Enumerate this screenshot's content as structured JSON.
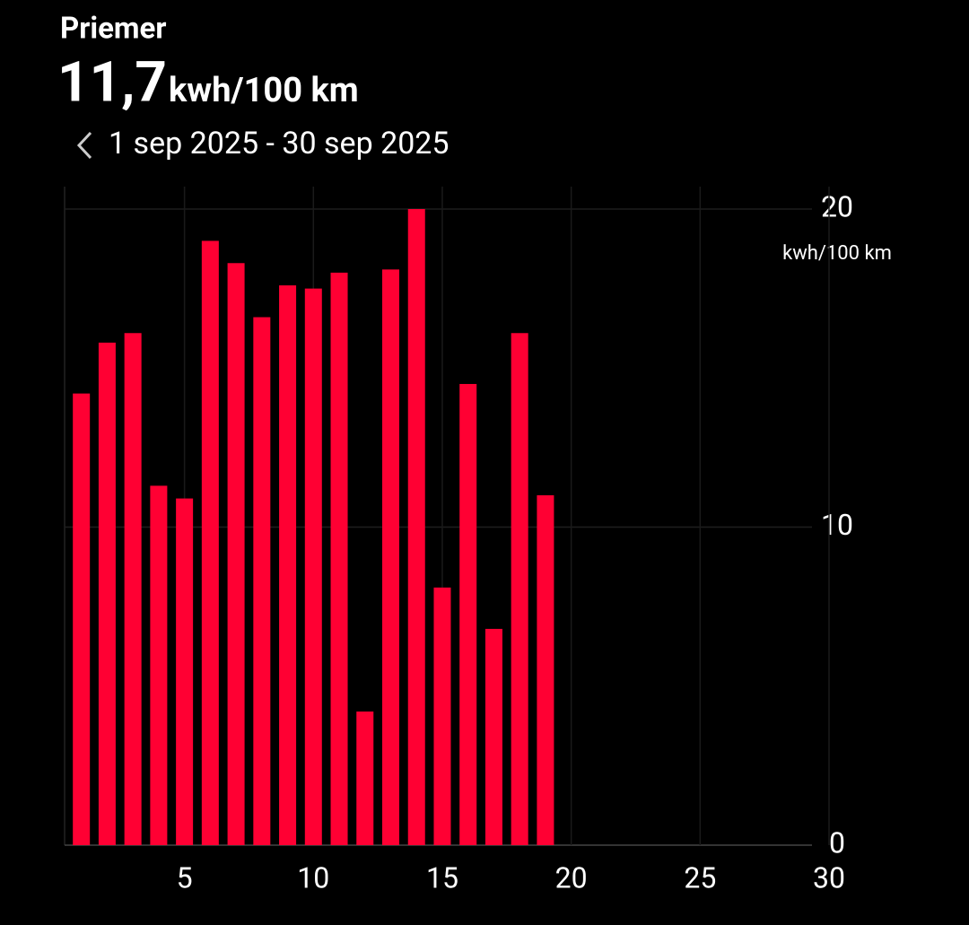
{
  "header": {
    "label": "Priemer",
    "value": "11,7",
    "unit": "kwh/100 km",
    "range": "1 sep 2025 - 30 sep 2025"
  },
  "chart_data": {
    "type": "bar",
    "y_label": "kwh/100 km",
    "color": "#ff0033",
    "x": [
      1,
      2,
      3,
      4,
      5,
      6,
      7,
      8,
      9,
      10,
      11,
      12,
      13,
      14,
      15,
      16,
      17,
      18,
      19
    ],
    "values": [
      14.2,
      15.8,
      16.1,
      11.3,
      10.9,
      19.0,
      18.3,
      16.6,
      17.6,
      17.5,
      18.0,
      4.2,
      18.1,
      20.0,
      8.1,
      14.5,
      6.8,
      16.1,
      11.0
    ],
    "xlim": [
      0.35,
      30
    ],
    "xticks": [
      5,
      10,
      15,
      20,
      25,
      30
    ],
    "ylim": [
      0,
      20
    ],
    "yticks": [
      0,
      10,
      20
    ],
    "grid": true
  }
}
